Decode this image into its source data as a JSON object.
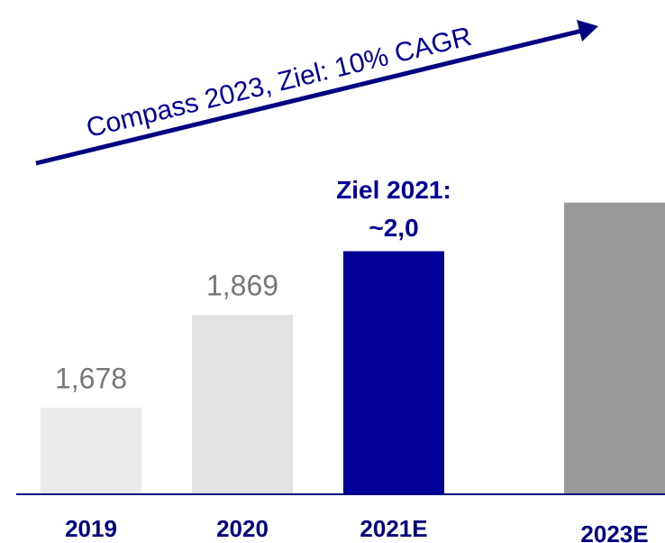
{
  "chart_data": {
    "type": "bar",
    "arrow_label": "Compass 2023, Ziel: 10% CAGR",
    "annotation": [
      "Ziel 2021:",
      "~2,0"
    ],
    "categories": [
      "2019",
      "2020",
      "2021E",
      "2023E"
    ],
    "values": [
      1.678,
      1.869,
      2.0,
      2.1
    ],
    "value_labels": [
      "1,678",
      "1,869",
      null,
      null
    ],
    "colors": [
      "#ebebeb",
      "#e3e3e3",
      "#000099",
      "#999999"
    ],
    "ylim": [
      1.5,
      2.5
    ]
  }
}
